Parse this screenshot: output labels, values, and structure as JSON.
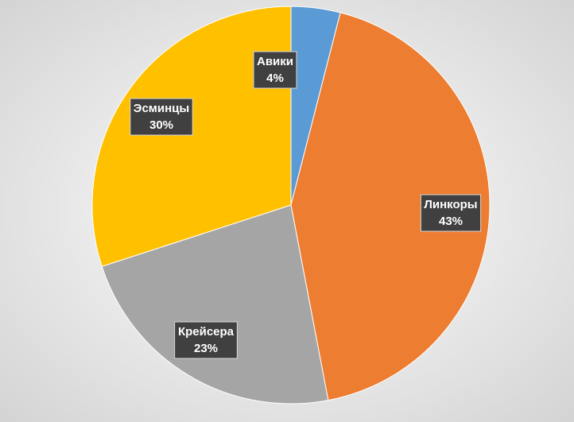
{
  "chart_data": {
    "type": "pie",
    "categories": [
      "Авики",
      "Линкоры",
      "Крейсера",
      "Эсминцы"
    ],
    "values": [
      4,
      43,
      23,
      30
    ],
    "value_labels": [
      "4%",
      "43%",
      "23%",
      "30%"
    ],
    "colors": [
      "#5b9bd5",
      "#ed7d31",
      "#a5a5a5",
      "#ffc000"
    ]
  }
}
